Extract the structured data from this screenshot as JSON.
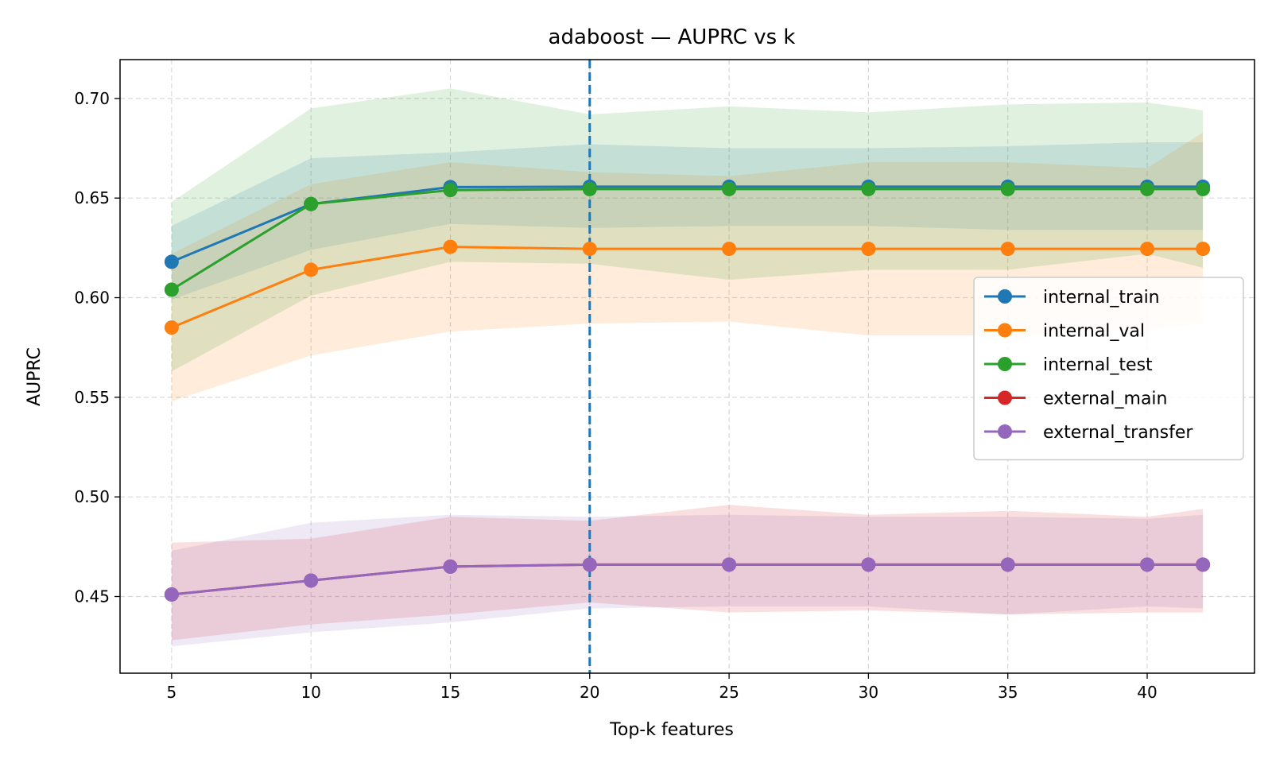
{
  "chart_data": {
    "type": "line",
    "title": "adaboost — AUPRC vs k",
    "xlabel": "Top-k features",
    "ylabel": "AUPRC",
    "x": [
      5,
      10,
      15,
      20,
      25,
      30,
      35,
      40,
      42
    ],
    "xlim": [
      3.15,
      43.85
    ],
    "ylim": [
      0.4115,
      0.7195
    ],
    "xticks": [
      5,
      10,
      15,
      20,
      25,
      30,
      35,
      40
    ],
    "xtick_labels": [
      "5",
      "10",
      "15",
      "20",
      "25",
      "30",
      "35",
      "40"
    ],
    "yticks": [
      0.45,
      0.5,
      0.55,
      0.6,
      0.65,
      0.7
    ],
    "ytick_labels": [
      "0.45",
      "0.50",
      "0.55",
      "0.60",
      "0.65",
      "0.70"
    ],
    "grid": true,
    "legend_position": "center-right",
    "vline": {
      "x": 20,
      "color": "#1f77b4",
      "style": "dashed"
    },
    "series": [
      {
        "name": "internal_train",
        "color": "#1f77b4",
        "values": [
          0.618,
          0.647,
          0.6555,
          0.6557,
          0.6557,
          0.6557,
          0.6557,
          0.6557,
          0.6557
        ],
        "band_low": [
          0.599,
          0.624,
          0.637,
          0.635,
          0.636,
          0.636,
          0.634,
          0.634,
          0.634
        ],
        "band_high": [
          0.636,
          0.67,
          0.673,
          0.677,
          0.675,
          0.675,
          0.676,
          0.678,
          0.678
        ]
      },
      {
        "name": "internal_val",
        "color": "#ff7f0e",
        "values": [
          0.585,
          0.614,
          0.6255,
          0.6245,
          0.6245,
          0.6245,
          0.6245,
          0.6245,
          0.6245
        ],
        "band_low": [
          0.548,
          0.571,
          0.583,
          0.587,
          0.588,
          0.581,
          0.581,
          0.584,
          0.587
        ],
        "band_high": [
          0.622,
          0.657,
          0.668,
          0.663,
          0.661,
          0.668,
          0.668,
          0.665,
          0.683
        ]
      },
      {
        "name": "internal_test",
        "color": "#2ca02c",
        "values": [
          0.604,
          0.647,
          0.654,
          0.6545,
          0.6545,
          0.6545,
          0.6545,
          0.6545,
          0.6545
        ],
        "band_low": [
          0.563,
          0.601,
          0.618,
          0.617,
          0.609,
          0.614,
          0.614,
          0.622,
          0.615
        ],
        "band_high": [
          0.648,
          0.695,
          0.705,
          0.692,
          0.696,
          0.693,
          0.697,
          0.698,
          0.694
        ]
      },
      {
        "name": "external_main",
        "color": "#d62728",
        "values": [
          0.451,
          0.458,
          0.465,
          0.466,
          0.466,
          0.466,
          0.466,
          0.466,
          0.466
        ],
        "band_low": [
          0.428,
          0.436,
          0.441,
          0.447,
          0.442,
          0.443,
          0.441,
          0.442,
          0.442
        ],
        "band_high": [
          0.477,
          0.479,
          0.49,
          0.488,
          0.496,
          0.491,
          0.493,
          0.49,
          0.494
        ]
      },
      {
        "name": "external_transfer",
        "color": "#9467bd",
        "values": [
          0.451,
          0.458,
          0.465,
          0.466,
          0.466,
          0.466,
          0.466,
          0.466,
          0.466
        ],
        "band_low": [
          0.425,
          0.432,
          0.437,
          0.444,
          0.445,
          0.445,
          0.441,
          0.445,
          0.444
        ],
        "band_high": [
          0.473,
          0.487,
          0.491,
          0.49,
          0.491,
          0.49,
          0.49,
          0.489,
          0.491
        ]
      }
    ]
  }
}
